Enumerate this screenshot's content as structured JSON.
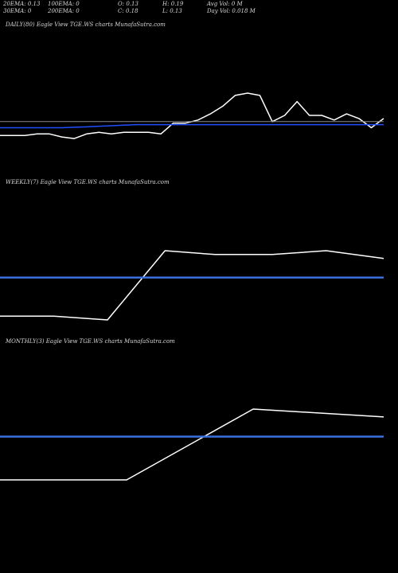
{
  "header": {
    "row1": [
      "20EMA: 0.13",
      "100EMA: 0",
      "O: 0.13",
      "H: 0.19",
      "Avg Vol: 0  M"
    ],
    "row2": [
      "30EMA: 0",
      "200EMA: 0",
      "C: 0.18",
      "L: 0.13",
      "Day Vol: 0.018  M"
    ]
  },
  "panels": [
    {
      "label": "DAILY(80) Eagle   View  TGE.WS charts MunafaSutra.com"
    },
    {
      "label": "WEEKLY(7) Eagle   View  TGE.WS charts MunafaSutra.com"
    },
    {
      "label": "MONTHLY(3) Eagle   View  TGE.WS charts MunafaSutra.com"
    }
  ],
  "chart_data": [
    {
      "type": "line",
      "series": [
        {
          "color": "#ffffff",
          "values": [
            0.07,
            0.07,
            0.07,
            0.08,
            0.08,
            0.06,
            0.05,
            0.08,
            0.09,
            0.08,
            0.09,
            0.09,
            0.09,
            0.08,
            0.15,
            0.15,
            0.17,
            0.21,
            0.26,
            0.33,
            0.345,
            0.33,
            0.16,
            0.2,
            0.29,
            0.2,
            0.2,
            0.17,
            0.21,
            0.18,
            0.12,
            0.18
          ]
        },
        {
          "color": "#1f4fff",
          "values": [
            0.12,
            0.12,
            0.12,
            0.12,
            0.12,
            0.12,
            0.123,
            0.126,
            0.13,
            0.133,
            0.137,
            0.14,
            0.14,
            0.14,
            0.14,
            0.14,
            0.14,
            0.14,
            0.14,
            0.14,
            0.14,
            0.14,
            0.14,
            0.14,
            0.14,
            0.14,
            0.14,
            0.14,
            0.14,
            0.14,
            0.14,
            0.14
          ]
        },
        {
          "color": "#8a8a8a",
          "values": [
            0.16,
            0.16,
            0.16,
            0.16,
            0.16,
            0.16,
            0.16,
            0.16,
            0.16,
            0.16,
            0.16,
            0.16,
            0.16,
            0.16,
            0.16,
            0.16,
            0.16,
            0.16,
            0.16,
            0.16,
            0.16,
            0.16,
            0.16,
            0.16,
            0.16,
            0.16,
            0.16,
            0.16,
            0.16,
            0.16,
            0.16,
            0.16
          ]
        }
      ]
    },
    {
      "type": "line",
      "series": [
        {
          "color": "#ffffff",
          "values": [
            0.03,
            0.03,
            0.02,
            0.2,
            0.19,
            0.19,
            0.2,
            0.18
          ]
        },
        {
          "color": "#3a6fdd",
          "values": [
            0.13,
            0.13,
            0.13,
            0.13,
            0.13,
            0.13,
            0.13,
            0.13
          ]
        }
      ]
    },
    {
      "type": "line",
      "series": [
        {
          "color": "#ffffff",
          "values": [
            0.02,
            0.02,
            0.2,
            0.18
          ]
        },
        {
          "color": "#3a6fdd",
          "values": [
            0.13,
            0.13,
            0.13,
            0.13
          ]
        }
      ]
    }
  ]
}
